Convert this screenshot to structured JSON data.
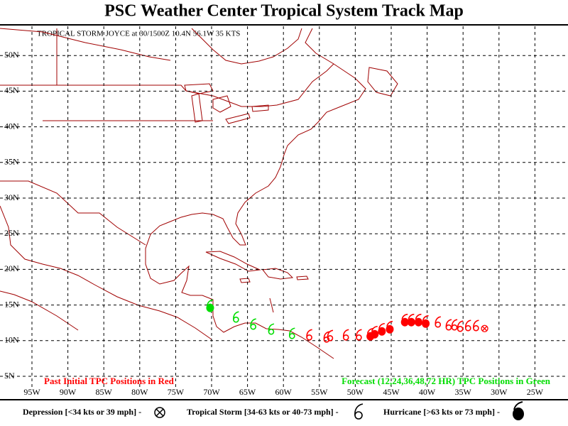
{
  "header": {
    "title": "PSC Weather Center Tropical System Track Map",
    "subtitle": "TROPICAL STORM JOYCE at 30/1500Z 10.4N 56.1W 35 KTS"
  },
  "map": {
    "lat_labels": [
      "50N",
      "45N",
      "40N",
      "35N",
      "30N",
      "25N",
      "20N",
      "15N",
      "10N",
      "5N"
    ],
    "lon_labels": [
      "95W",
      "90W",
      "85W",
      "80W",
      "75W",
      "70W",
      "65W",
      "60W",
      "55W",
      "50W",
      "45W",
      "40W",
      "35W",
      "30W",
      "25W"
    ],
    "past": {
      "note": "Past Initial TPC  Positions in Red",
      "color": "#ff0000",
      "points": [
        {
          "lon": 32.0,
          "lat": 11.7,
          "symbol": "depression"
        },
        {
          "lon": 33.2,
          "lat": 12.0,
          "symbol": "storm"
        },
        {
          "lon": 34.3,
          "lat": 12.0,
          "symbol": "storm"
        },
        {
          "lon": 35.4,
          "lat": 11.9,
          "symbol": "storm"
        },
        {
          "lon": 36.2,
          "lat": 12.1,
          "symbol": "storm"
        },
        {
          "lon": 37.0,
          "lat": 12.1,
          "symbol": "storm"
        },
        {
          "lon": 38.5,
          "lat": 12.5,
          "symbol": "storm"
        },
        {
          "lon": 40.2,
          "lat": 12.5,
          "symbol": "hurricane"
        },
        {
          "lon": 41.2,
          "lat": 12.7,
          "symbol": "hurricane"
        },
        {
          "lon": 42.2,
          "lat": 12.7,
          "symbol": "hurricane"
        },
        {
          "lon": 43.1,
          "lat": 12.7,
          "symbol": "hurricane"
        },
        {
          "lon": 45.2,
          "lat": 11.7,
          "symbol": "hurricane"
        },
        {
          "lon": 46.3,
          "lat": 11.4,
          "symbol": "hurricane"
        },
        {
          "lon": 47.3,
          "lat": 11.0,
          "symbol": "hurricane"
        },
        {
          "lon": 47.9,
          "lat": 10.7,
          "symbol": "hurricane"
        },
        {
          "lon": 49.5,
          "lat": 10.7,
          "symbol": "storm"
        },
        {
          "lon": 51.3,
          "lat": 10.7,
          "symbol": "storm"
        },
        {
          "lon": 53.5,
          "lat": 10.6,
          "symbol": "storm"
        },
        {
          "lon": 54.0,
          "lat": 10.4,
          "symbol": "storm"
        },
        {
          "lon": 56.4,
          "lat": 10.7,
          "symbol": "storm"
        }
      ]
    },
    "forecast": {
      "note": "Forecast (12,24,36,48,72 HR) TPC  Positions in Green",
      "color": "#00dd00",
      "points": [
        {
          "lon": 58.8,
          "lat": 10.9,
          "symbol": "storm"
        },
        {
          "lon": 61.7,
          "lat": 11.5,
          "symbol": "storm"
        },
        {
          "lon": 64.2,
          "lat": 12.2,
          "symbol": "storm"
        },
        {
          "lon": 66.6,
          "lat": 13.2,
          "symbol": "storm"
        },
        {
          "lon": 70.2,
          "lat": 14.7,
          "symbol": "hurricane"
        }
      ]
    }
  },
  "legend": {
    "depression": "Depression [<34 kts or 39 mph] -",
    "storm": "Tropical Storm [34-63 kts or 40-73 mph] -",
    "hurricane": "Hurricane [>63 kts or 73 mph] -"
  }
}
